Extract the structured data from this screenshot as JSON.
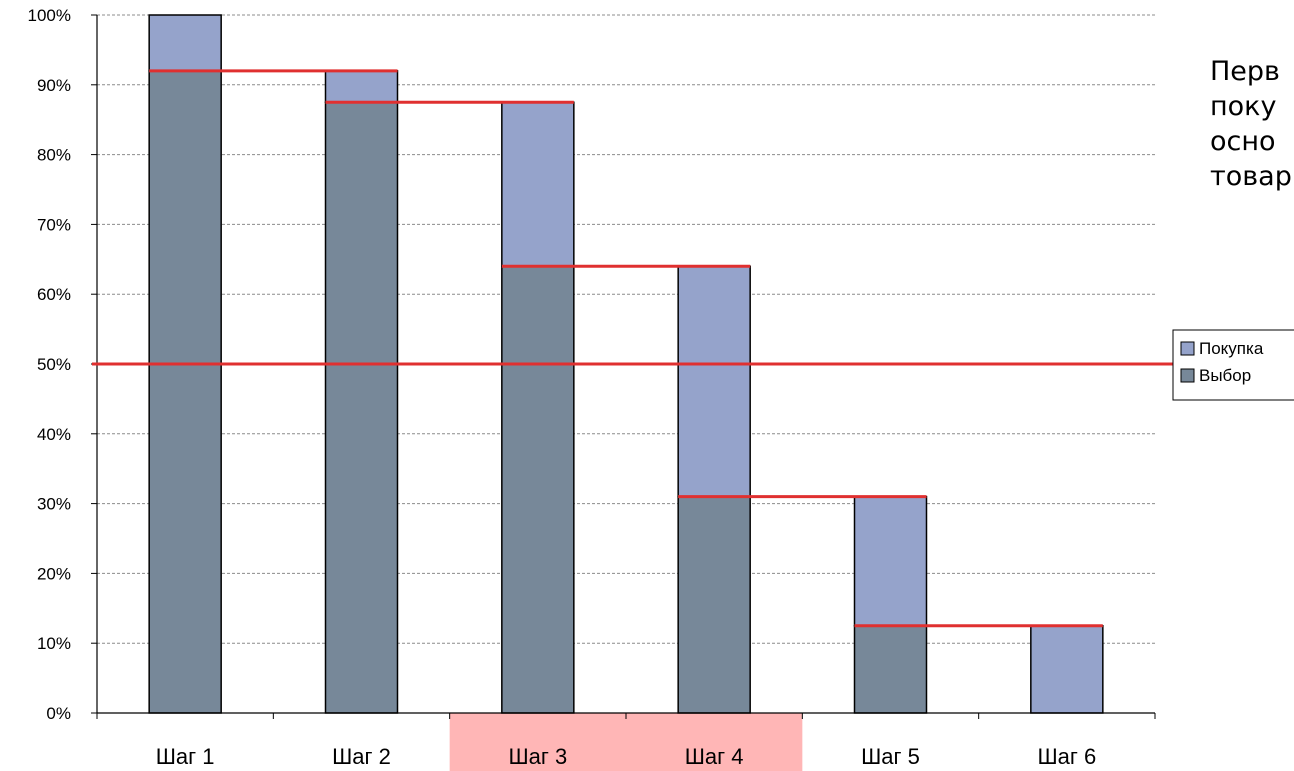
{
  "chart_data": {
    "type": "bar",
    "stacked": true,
    "categories": [
      "Шаг 1",
      "Шаг 2",
      "Шаг 3",
      "Шаг 4",
      "Шаг 5",
      "Шаг 6"
    ],
    "highlighted_categories": [
      "Шаг 3",
      "Шаг 4"
    ],
    "highlight_color": "#ffb6b6",
    "series": [
      {
        "name": "Выбор",
        "color": "#778899",
        "values": [
          92,
          87.5,
          64,
          31,
          12.5,
          0
        ]
      },
      {
        "name": "Покупка",
        "color": "#95a3cb",
        "values": [
          8,
          4.5,
          23.5,
          33,
          18.5,
          12.5
        ]
      }
    ],
    "legend_order": [
      "Покупка",
      "Выбор"
    ],
    "legend_position": "right",
    "ylim": [
      0,
      100
    ],
    "yticks": [
      "0%",
      "10%",
      "20%",
      "30%",
      "40%",
      "50%",
      "60%",
      "70%",
      "80%",
      "90%",
      "100%"
    ],
    "ytick_step": 10,
    "grid": "horizontal dashed",
    "reference_line": {
      "value": 50,
      "color": "#e03030"
    },
    "step_lines": {
      "color": "#e03030",
      "values": [
        92,
        87.5,
        64,
        31,
        12.5
      ]
    },
    "title": "",
    "xlabel": "",
    "ylabel": ""
  },
  "side_note": {
    "lines": [
      "Перв",
      "поку",
      "осно",
      "товар"
    ]
  }
}
